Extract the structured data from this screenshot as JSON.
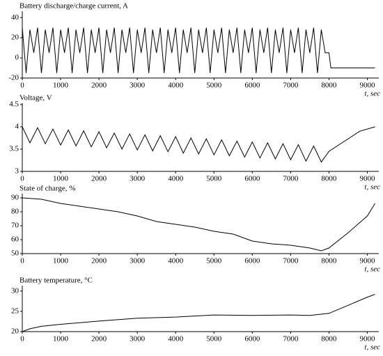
{
  "chart_data": [
    {
      "type": "line",
      "title": "Battery discharge/charge current, A",
      "xlabel": "t, sec",
      "x": [
        0,
        100,
        200,
        300,
        400,
        500,
        600,
        700,
        800,
        900,
        1000,
        1100,
        1200,
        1300,
        1400,
        1500,
        1600,
        1700,
        1800,
        1900,
        2000,
        2100,
        2200,
        2300,
        2400,
        2500,
        2600,
        2700,
        2800,
        2900,
        3000,
        3100,
        3200,
        3300,
        3400,
        3500,
        3600,
        3700,
        3800,
        3900,
        4000,
        4100,
        4200,
        4300,
        4400,
        4500,
        4600,
        4700,
        4800,
        4900,
        5000,
        5100,
        5200,
        5300,
        5400,
        5500,
        5600,
        5700,
        5800,
        5900,
        6000,
        6100,
        6200,
        6300,
        6400,
        6500,
        6600,
        6700,
        6800,
        6900,
        7000,
        7100,
        7200,
        7300,
        7400,
        7500,
        7600,
        7700,
        7800,
        7900,
        8000,
        8050,
        9200
      ],
      "series": [
        {
          "name": "current",
          "color": "#000000",
          "values": [
            30,
            -15,
            28,
            5,
            30,
            -15,
            28,
            5,
            30,
            -15,
            28,
            5,
            30,
            -15,
            28,
            5,
            30,
            -15,
            28,
            5,
            30,
            -15,
            28,
            5,
            30,
            -15,
            28,
            5,
            30,
            -15,
            28,
            5,
            30,
            -15,
            28,
            5,
            30,
            -15,
            28,
            5,
            30,
            -15,
            28,
            5,
            30,
            -15,
            28,
            5,
            30,
            -15,
            28,
            5,
            30,
            -15,
            28,
            5,
            30,
            -15,
            28,
            5,
            30,
            -15,
            28,
            5,
            30,
            -15,
            28,
            5,
            30,
            -15,
            28,
            5,
            30,
            -15,
            28,
            5,
            30,
            -15,
            28,
            5,
            5,
            -10,
            -10
          ]
        }
      ],
      "xlim": [
        0,
        9300
      ],
      "xticks": [
        0,
        1000,
        2000,
        3000,
        4000,
        5000,
        6000,
        7000,
        8000,
        9000
      ],
      "ylim": [
        -20,
        45
      ],
      "yticks": [
        -20,
        0,
        20,
        40
      ]
    },
    {
      "type": "line",
      "title": "Voltage, V",
      "xlabel": "t, sec",
      "x": [
        0,
        200,
        400,
        600,
        800,
        1000,
        1200,
        1400,
        1600,
        1800,
        2000,
        2200,
        2400,
        2600,
        2800,
        3000,
        3200,
        3400,
        3600,
        3800,
        4000,
        4200,
        4400,
        4600,
        4800,
        5000,
        5200,
        5400,
        5600,
        5800,
        6000,
        6200,
        6400,
        6600,
        6800,
        7000,
        7200,
        7400,
        7600,
        7800,
        8000,
        8800,
        9200
      ],
      "series": [
        {
          "name": "voltage",
          "color": "#000000",
          "values": [
            4.0,
            3.64,
            3.98,
            3.62,
            3.95,
            3.59,
            3.93,
            3.57,
            3.91,
            3.55,
            3.89,
            3.53,
            3.86,
            3.5,
            3.84,
            3.48,
            3.82,
            3.46,
            3.8,
            3.44,
            3.78,
            3.41,
            3.75,
            3.39,
            3.73,
            3.37,
            3.71,
            3.35,
            3.68,
            3.32,
            3.66,
            3.3,
            3.64,
            3.28,
            3.62,
            3.26,
            3.6,
            3.23,
            3.57,
            3.21,
            3.45,
            3.9,
            4.0
          ]
        }
      ],
      "xlim": [
        0,
        9300
      ],
      "xticks": [
        0,
        1000,
        2000,
        3000,
        4000,
        5000,
        6000,
        7000,
        8000,
        9000
      ],
      "ylim": [
        3,
        4.5
      ],
      "yticks": [
        3,
        3.5,
        4,
        4.5
      ]
    },
    {
      "type": "line",
      "title": "State of charge, %",
      "xlabel": "t, sec",
      "x": [
        0,
        500,
        1000,
        1500,
        2000,
        2500,
        3000,
        3500,
        4000,
        4500,
        5000,
        5500,
        6000,
        6500,
        7000,
        7500,
        7800,
        8000,
        8500,
        9000,
        9200
      ],
      "series": [
        {
          "name": "soc",
          "color": "#000000",
          "values": [
            90,
            89,
            86,
            84,
            82,
            80,
            77,
            73,
            71,
            69,
            66,
            64,
            59,
            57,
            56,
            54,
            52,
            54,
            65,
            77,
            86
          ]
        }
      ],
      "xlim": [
        0,
        9300
      ],
      "xticks": [
        0,
        1000,
        2000,
        3000,
        4000,
        5000,
        6000,
        7000,
        8000,
        9000
      ],
      "ylim": [
        50,
        92
      ],
      "yticks": [
        50,
        60,
        70,
        80,
        90
      ]
    },
    {
      "type": "line",
      "title": "Battery temperature, °C",
      "xlabel": "t, sec",
      "x": [
        0,
        200,
        500,
        1000,
        2000,
        3000,
        4000,
        5000,
        6000,
        7000,
        7500,
        8000,
        8500,
        9000,
        9200
      ],
      "series": [
        {
          "name": "temperature",
          "color": "#000000",
          "values": [
            20,
            20.7,
            21.3,
            21.8,
            22.6,
            23.3,
            23.6,
            24.1,
            24.0,
            24.1,
            24.0,
            24.5,
            26.5,
            28.5,
            29.2
          ]
        }
      ],
      "xlim": [
        0,
        9300
      ],
      "xticks": [
        0,
        1000,
        2000,
        3000,
        4000,
        5000,
        6000,
        7000,
        8000,
        9000
      ],
      "ylim": [
        20,
        31
      ],
      "yticks": [
        20,
        25,
        30
      ]
    }
  ]
}
